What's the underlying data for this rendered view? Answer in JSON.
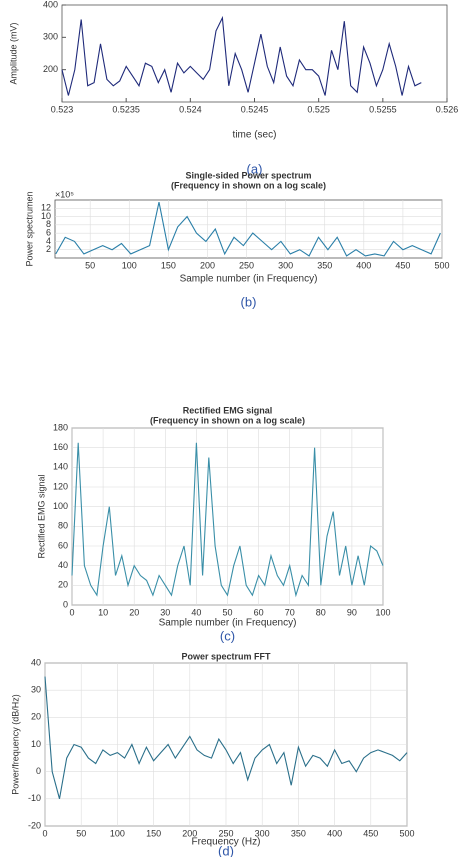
{
  "chart_data": [
    {
      "type": "line",
      "caption": "(a)",
      "xlabel": "time (sec)",
      "ylabel": "Amplitude (mV)",
      "xlim": [
        0.523,
        0.526
      ],
      "xticks": [
        0.523,
        0.5235,
        0.524,
        0.5245,
        0.525,
        0.5255,
        0.526
      ],
      "ylim": [
        100,
        400
      ],
      "yticks": [
        200,
        300,
        400
      ],
      "grid": false,
      "x": [
        0.523,
        0.52305,
        0.5231,
        0.52315,
        0.5232,
        0.52325,
        0.5233,
        0.52335,
        0.5234,
        0.52345,
        0.5235,
        0.52355,
        0.5236,
        0.52365,
        0.5237,
        0.52375,
        0.5238,
        0.52385,
        0.5239,
        0.52395,
        0.524,
        0.52405,
        0.5241,
        0.52415,
        0.5242,
        0.52425,
        0.5243,
        0.52435,
        0.5244,
        0.52445,
        0.5245,
        0.52455,
        0.5246,
        0.52465,
        0.5247,
        0.52475,
        0.5248,
        0.52485,
        0.5249,
        0.52495,
        0.525,
        0.52505,
        0.5251,
        0.52515,
        0.5252,
        0.52525,
        0.5253,
        0.52535,
        0.5254,
        0.52545,
        0.5255,
        0.52555,
        0.5256,
        0.52565,
        0.5257,
        0.52575,
        0.5258
      ],
      "series": [
        {
          "color": "#1f2a7a",
          "values": [
            200,
            120,
            200,
            355,
            150,
            160,
            280,
            170,
            150,
            165,
            210,
            180,
            150,
            220,
            210,
            160,
            200,
            130,
            220,
            190,
            210,
            190,
            170,
            200,
            320,
            360,
            150,
            250,
            200,
            130,
            220,
            310,
            210,
            160,
            270,
            180,
            150,
            230,
            200,
            200,
            180,
            120,
            260,
            200,
            350,
            150,
            130,
            270,
            220,
            150,
            200,
            280,
            210,
            120,
            210,
            150,
            160
          ]
        }
      ]
    },
    {
      "type": "line",
      "caption": "(b)",
      "title": [
        "Single-sided Power spectrum",
        "(Frequency in shown on a log scale)"
      ],
      "y_multiplier": "×10⁵",
      "xlabel": "Sample number (in Frequency)",
      "ylabel": "Power spectrumen",
      "xlim": [
        5,
        500
      ],
      "xticks": [
        50,
        100,
        150,
        200,
        250,
        300,
        350,
        400,
        450,
        500
      ],
      "ylim": [
        0,
        14
      ],
      "yticks": [
        2,
        4,
        6,
        8,
        10,
        12
      ],
      "grid": true,
      "x": [
        6,
        18,
        30,
        42,
        54,
        66,
        78,
        90,
        102,
        114,
        126,
        138,
        150,
        162,
        174,
        186,
        198,
        210,
        222,
        234,
        246,
        258,
        270,
        282,
        294,
        306,
        318,
        330,
        342,
        354,
        366,
        378,
        390,
        402,
        414,
        426,
        438,
        450,
        462,
        474,
        486,
        498
      ],
      "series": [
        {
          "color": "#2a7fa8",
          "values": [
            1,
            5,
            4,
            1,
            2,
            3,
            2,
            3.5,
            1,
            2,
            3,
            13.5,
            2,
            7.5,
            10,
            6,
            4,
            7,
            1,
            5,
            3,
            6,
            4,
            2,
            4,
            1,
            2,
            0.5,
            5,
            2,
            5,
            0.5,
            2,
            0.5,
            1,
            0.5,
            4,
            2,
            3,
            2,
            1,
            6
          ]
        }
      ]
    },
    {
      "type": "line",
      "caption": "(c)",
      "title": [
        "Rectified EMG signal",
        "(Frequency in shown on a log scale)"
      ],
      "xlabel": "Sample number (in Frequency)",
      "ylabel": "Rectified EMG signal",
      "xlim": [
        0,
        100
      ],
      "xticks": [
        0,
        10,
        20,
        30,
        40,
        50,
        60,
        70,
        80,
        90,
        100
      ],
      "ylim": [
        0,
        180
      ],
      "yticks": [
        0,
        20,
        40,
        60,
        80,
        100,
        120,
        140,
        160,
        180
      ],
      "grid": true,
      "x": [
        0,
        2,
        4,
        6,
        8,
        10,
        12,
        14,
        16,
        18,
        20,
        22,
        24,
        26,
        28,
        30,
        32,
        34,
        36,
        38,
        40,
        42,
        44,
        46,
        48,
        50,
        52,
        54,
        56,
        58,
        60,
        62,
        64,
        66,
        68,
        70,
        72,
        74,
        76,
        78,
        80,
        82,
        84,
        86,
        88,
        90,
        92,
        94,
        96,
        98,
        100
      ],
      "series": [
        {
          "color": "#3a8fa8",
          "values": [
            30,
            165,
            40,
            20,
            10,
            60,
            100,
            30,
            50,
            20,
            40,
            30,
            25,
            10,
            30,
            20,
            10,
            40,
            60,
            20,
            165,
            30,
            150,
            60,
            20,
            10,
            40,
            60,
            20,
            10,
            30,
            20,
            50,
            30,
            20,
            40,
            10,
            30,
            20,
            160,
            20,
            70,
            95,
            30,
            60,
            20,
            50,
            20,
            60,
            55,
            40
          ]
        }
      ]
    },
    {
      "type": "line",
      "caption": "(d)",
      "title": [
        "Power spectrum FFT"
      ],
      "xlabel": "Frequency (Hz)",
      "ylabel": "Power/frequency (dB/Hz)",
      "xlim": [
        0,
        500
      ],
      "xticks": [
        0,
        50,
        100,
        150,
        200,
        250,
        300,
        350,
        400,
        450,
        500
      ],
      "ylim": [
        -20,
        40
      ],
      "yticks": [
        -20,
        -10,
        0,
        10,
        20,
        30,
        40
      ],
      "grid": true,
      "x": [
        0,
        10,
        20,
        30,
        40,
        50,
        60,
        70,
        80,
        90,
        100,
        110,
        120,
        130,
        140,
        150,
        160,
        170,
        180,
        190,
        200,
        210,
        220,
        230,
        240,
        250,
        260,
        270,
        280,
        290,
        300,
        310,
        320,
        330,
        340,
        350,
        360,
        370,
        380,
        390,
        400,
        410,
        420,
        430,
        440,
        450,
        460,
        470,
        480,
        490,
        500
      ],
      "series": [
        {
          "color": "#2a6f8a",
          "values": [
            35,
            0,
            -10,
            5,
            10,
            9,
            5,
            3,
            8,
            6,
            7,
            5,
            10,
            3,
            9,
            4,
            7,
            10,
            5,
            9,
            13,
            8,
            6,
            5,
            12,
            8,
            3,
            7,
            -3,
            5,
            8,
            10,
            3,
            7,
            -5,
            9,
            2,
            6,
            5,
            2,
            8,
            3,
            4,
            0,
            5,
            7,
            8,
            7,
            6,
            4,
            7
          ]
        }
      ]
    }
  ]
}
